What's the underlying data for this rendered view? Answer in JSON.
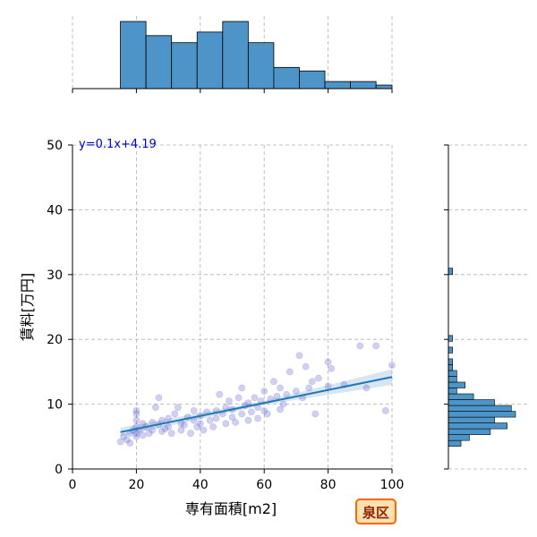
{
  "chart_data": {
    "type": "scatter",
    "title": "",
    "xlabel": "専有面積[m2]",
    "ylabel": "賃料[万円]",
    "xlim": [
      0,
      100
    ],
    "ylim": [
      0,
      50
    ],
    "x_ticks": [
      0,
      20,
      40,
      60,
      80,
      100
    ],
    "y_ticks": [
      0,
      10,
      20,
      30,
      40,
      50
    ],
    "grid": true,
    "annotation": "y=0.1x+4.19",
    "badge": "泉区",
    "regression": {
      "slope": 0.1,
      "intercept": 4.19,
      "x_range": [
        15,
        100
      ]
    },
    "colors": {
      "points": "#5555cc",
      "line": "#1f77b4",
      "hist": "#4d94c8",
      "badge_border": "#ff6600",
      "badge_fill": "#ffe0b0"
    },
    "points": [
      [
        15,
        4.2
      ],
      [
        16,
        5.0
      ],
      [
        17,
        4.5
      ],
      [
        18,
        4.0
      ],
      [
        18,
        5.5
      ],
      [
        19,
        6.0
      ],
      [
        20,
        5.0
      ],
      [
        20,
        6.5
      ],
      [
        20,
        7.5
      ],
      [
        20,
        8.5
      ],
      [
        20,
        9.0
      ],
      [
        20,
        5.5
      ],
      [
        21,
        6.0
      ],
      [
        22,
        5.2
      ],
      [
        22,
        7.0
      ],
      [
        23,
        6.5
      ],
      [
        24,
        5.5
      ],
      [
        25,
        6.0
      ],
      [
        25,
        7.2
      ],
      [
        26,
        9.5
      ],
      [
        27,
        11.0
      ],
      [
        27,
        6.8
      ],
      [
        28,
        7.5
      ],
      [
        28,
        5.8
      ],
      [
        29,
        6.2
      ],
      [
        30,
        6.5
      ],
      [
        30,
        7.8
      ],
      [
        31,
        5.5
      ],
      [
        32,
        8.5
      ],
      [
        33,
        9.5
      ],
      [
        34,
        7.0
      ],
      [
        34,
        6.0
      ],
      [
        35,
        6.8
      ],
      [
        36,
        8.0
      ],
      [
        37,
        5.5
      ],
      [
        38,
        7.5
      ],
      [
        38,
        9.0
      ],
      [
        39,
        6.5
      ],
      [
        40,
        8.2
      ],
      [
        40,
        7.0
      ],
      [
        41,
        6.0
      ],
      [
        42,
        8.8
      ],
      [
        43,
        7.5
      ],
      [
        44,
        6.5
      ],
      [
        45,
        9.0
      ],
      [
        45,
        7.8
      ],
      [
        46,
        11.5
      ],
      [
        47,
        8.5
      ],
      [
        48,
        9.5
      ],
      [
        48,
        7.0
      ],
      [
        49,
        10.5
      ],
      [
        50,
        8.0
      ],
      [
        50,
        9.2
      ],
      [
        51,
        7.2
      ],
      [
        52,
        11.0
      ],
      [
        53,
        8.5
      ],
      [
        53,
        12.5
      ],
      [
        54,
        9.8
      ],
      [
        55,
        7.5
      ],
      [
        55,
        10.2
      ],
      [
        56,
        8.8
      ],
      [
        57,
        11.0
      ],
      [
        58,
        9.5
      ],
      [
        58,
        7.8
      ],
      [
        59,
        10.5
      ],
      [
        60,
        9.0
      ],
      [
        60,
        12.0
      ],
      [
        61,
        8.5
      ],
      [
        62,
        10.8
      ],
      [
        63,
        13.5
      ],
      [
        64,
        11.2
      ],
      [
        65,
        9.2
      ],
      [
        65,
        12.5
      ],
      [
        66,
        10.0
      ],
      [
        67,
        11.5
      ],
      [
        68,
        15.0
      ],
      [
        70,
        12.0
      ],
      [
        71,
        17.5
      ],
      [
        72,
        11.0
      ],
      [
        73,
        15.8
      ],
      [
        74,
        12.5
      ],
      [
        75,
        13.5
      ],
      [
        76,
        8.5
      ],
      [
        77,
        14.0
      ],
      [
        80,
        16.5
      ],
      [
        80,
        12.8
      ],
      [
        81,
        15.5
      ],
      [
        85,
        13.0
      ],
      [
        90,
        19.0
      ],
      [
        92,
        12.5
      ],
      [
        95,
        19.0
      ],
      [
        98,
        9.0
      ],
      [
        100,
        16.0
      ]
    ],
    "hist_x": {
      "edges": [
        15,
        23,
        31,
        39,
        47,
        55,
        63,
        71,
        79,
        87,
        95,
        100
      ],
      "counts": [
        19,
        15,
        13,
        16,
        19,
        13,
        6,
        5,
        2,
        2,
        1
      ]
    },
    "hist_y": {
      "edges": [
        3.5,
        4.4,
        5.3,
        6.2,
        7.1,
        8.0,
        8.9,
        9.8,
        10.7,
        11.6,
        12.5,
        13.4,
        14.3,
        15.2,
        16.1,
        17.0,
        17.9,
        18.8,
        19.7,
        20.6,
        30.0,
        31.0
      ],
      "counts": [
        3,
        5,
        10,
        14,
        11,
        16,
        15,
        11,
        6,
        2,
        4,
        2,
        2,
        1,
        1,
        0,
        1,
        0,
        1,
        0,
        1
      ]
    }
  }
}
